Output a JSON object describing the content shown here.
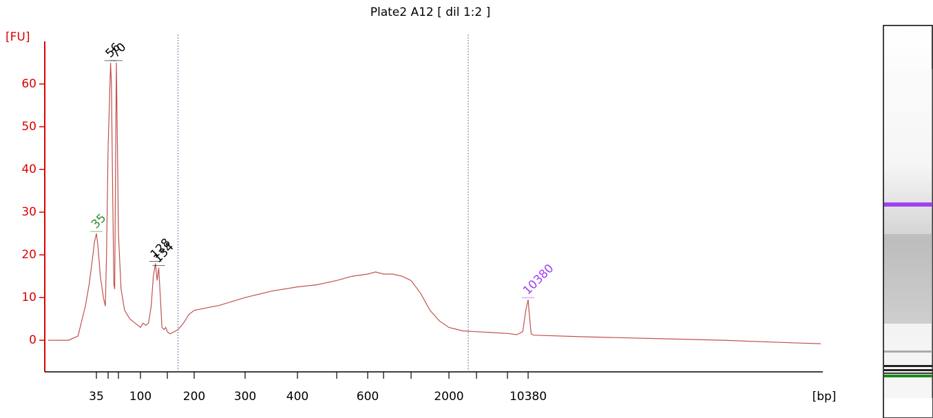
{
  "chart_data": {
    "type": "line",
    "title": "Plate2 A12  [ dil 1:2 ]",
    "y_label": "[FU]",
    "x_label": "[bp]",
    "x": [
      8,
      15,
      20,
      25,
      28,
      31,
      33,
      35,
      37,
      40,
      44,
      46.5,
      48,
      50,
      53,
      56,
      58,
      61,
      64,
      66,
      68,
      70,
      72,
      75,
      78,
      82,
      88,
      94,
      100,
      105,
      110,
      115,
      120,
      124,
      128,
      131,
      134,
      137,
      140,
      144,
      147,
      150,
      155,
      160,
      170,
      180,
      190,
      200,
      250,
      300,
      350,
      400,
      450,
      500,
      550,
      600,
      650,
      700,
      800,
      900,
      1000,
      1250,
      1500,
      1750,
      2000,
      2500,
      3000,
      5000,
      7000,
      8500,
      9500,
      10000,
      10380,
      10700,
      11000,
      11500,
      30900,
      115000,
      428000,
      1590000,
      2750000
    ],
    "values": [
      0,
      0,
      1,
      8,
      13,
      19,
      23,
      25,
      22,
      15,
      10,
      8,
      20,
      45,
      55,
      65,
      60,
      35,
      13,
      12,
      40,
      65,
      50,
      25,
      12,
      7,
      5,
      4,
      3,
      4,
      3.5,
      4,
      8,
      15,
      18,
      14,
      17,
      10,
      3,
      2.5,
      3,
      2,
      1.5,
      1.8,
      2.5,
      4,
      6,
      7,
      8.2,
      10,
      11.5,
      12.5,
      13,
      14,
      15,
      15.5,
      16,
      15.5,
      15.5,
      15,
      14,
      11,
      7,
      4.5,
      3,
      2.2,
      2,
      1.8,
      1.6,
      1.3,
      2,
      7,
      9.5,
      5,
      1.5,
      1.2,
      0.8,
      0.4,
      0,
      -0.6,
      -0.8
    ],
    "color": "#c0504d",
    "axis_color": "#dd0000",
    "xlim": [
      7.2,
      2900000
    ],
    "xticks": [
      35,
      100,
      200,
      300,
      400,
      600,
      2000,
      10380
    ],
    "xminor_ticks": [
      50,
      75,
      150,
      500,
      700,
      1000,
      3000,
      7000
    ],
    "ylim": [
      -7.4,
      70
    ],
    "yticks": [
      0,
      10,
      20,
      30,
      40,
      50,
      60
    ],
    "region_lines": [
      170,
      2700
    ],
    "peaks": [
      {
        "value": 35,
        "fu": 25,
        "color": "#2e8b2e"
      },
      {
        "value": 56,
        "fu": 65,
        "color": "#000000"
      },
      {
        "value": 70,
        "fu": 65,
        "color": "#000000"
      },
      {
        "value": 128,
        "fu": 18,
        "color": "#000000"
      },
      {
        "value": 134,
        "fu": 17,
        "color": "#000000"
      },
      {
        "value": 10380,
        "fu": 9.5,
        "color": "#a040f0"
      }
    ]
  }
}
